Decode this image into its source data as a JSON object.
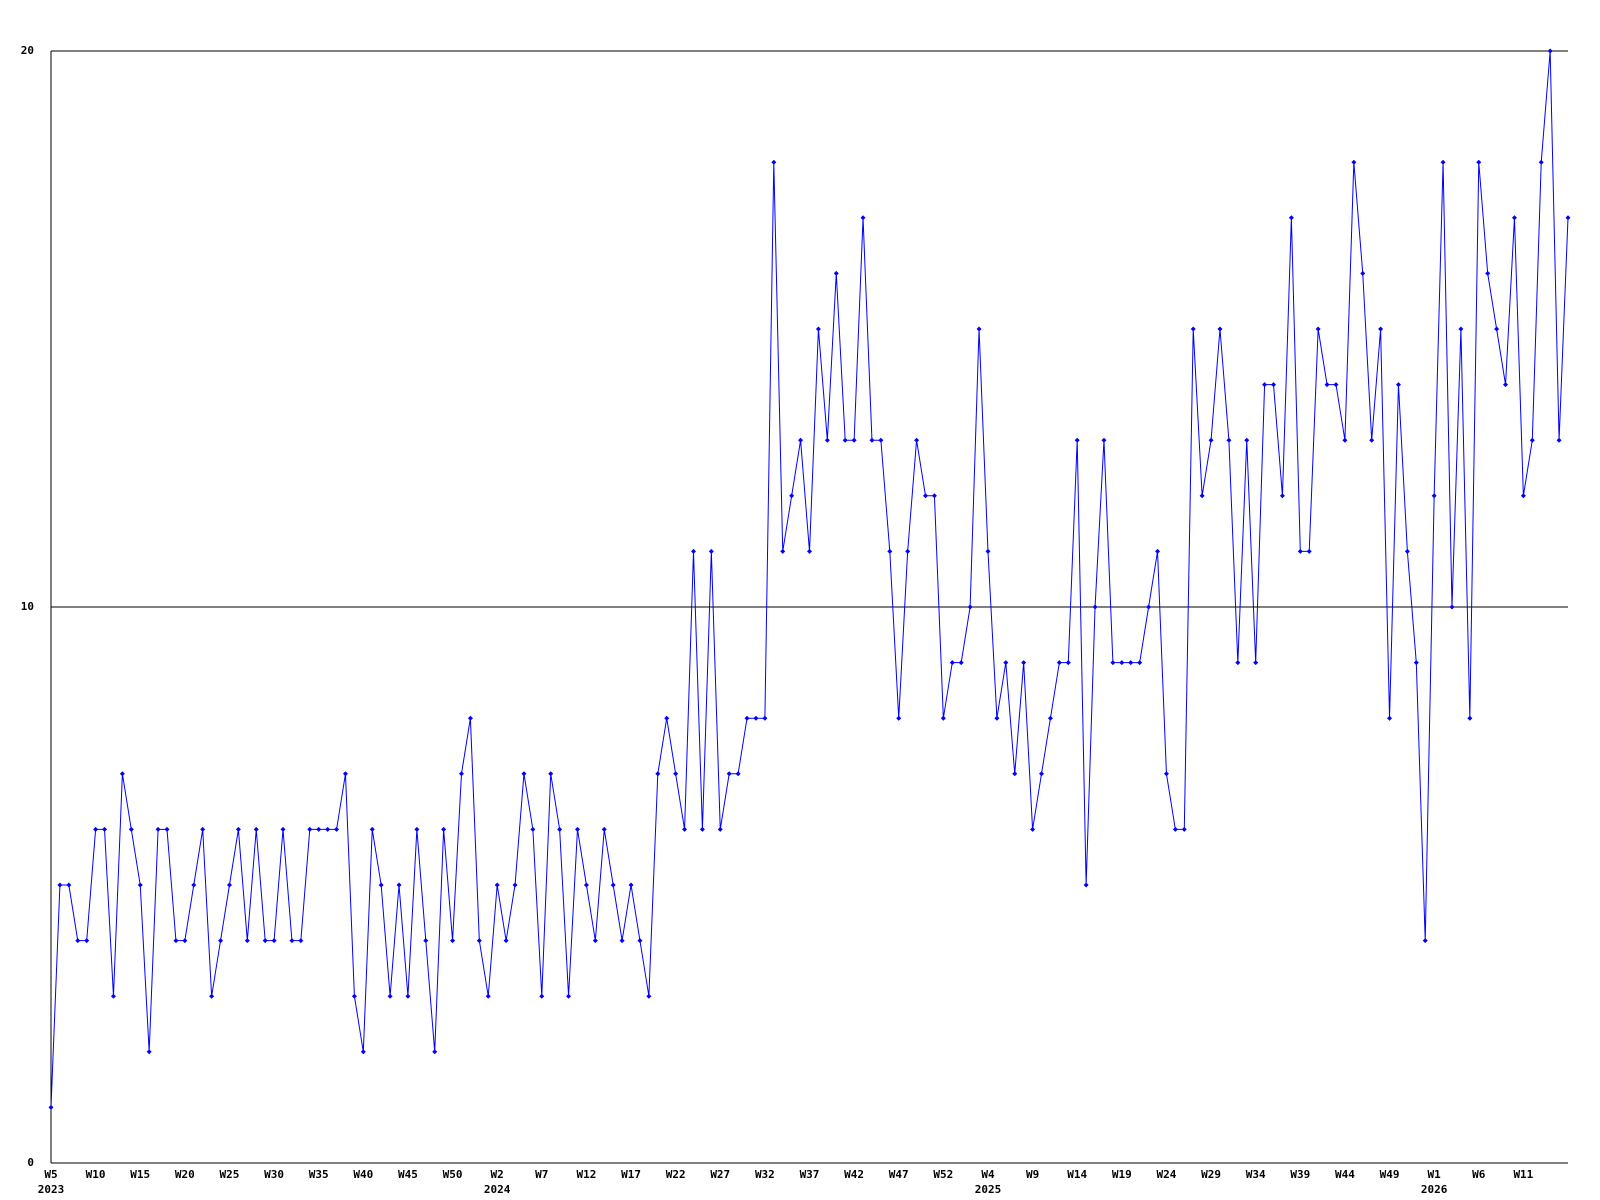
{
  "chart_data": {
    "type": "line",
    "color": "#0000ff",
    "grid": true,
    "ylim": [
      0,
      20
    ],
    "yticks": [
      0,
      10,
      20
    ],
    "categories": [
      "W5",
      null,
      null,
      null,
      null,
      "W10",
      null,
      null,
      null,
      null,
      "W15",
      null,
      null,
      null,
      null,
      "W20",
      null,
      null,
      null,
      null,
      "W25",
      null,
      null,
      null,
      null,
      "W30",
      null,
      null,
      null,
      null,
      "W35",
      null,
      null,
      null,
      null,
      "W40",
      null,
      null,
      null,
      null,
      "W45",
      null,
      null,
      null,
      null,
      "W50",
      null,
      null,
      null,
      null,
      "W2",
      null,
      null,
      null,
      null,
      "W7",
      null,
      null,
      null,
      null,
      "W12",
      null,
      null,
      null,
      null,
      "W17",
      null,
      null,
      null,
      null,
      "W22",
      null,
      null,
      null,
      null,
      "W27",
      null,
      null,
      null,
      null,
      "W32",
      null,
      null,
      null,
      null,
      "W37",
      null,
      null,
      null,
      null,
      "W42",
      null,
      null,
      null,
      null,
      "W47",
      null,
      null,
      null,
      null,
      "W52",
      null,
      null,
      null,
      null,
      "W4",
      null,
      null,
      null,
      null,
      "W9",
      null,
      null,
      null,
      null,
      "W14",
      null,
      null,
      null,
      null,
      "W19",
      null,
      null,
      null,
      null,
      "W24",
      null,
      null,
      null,
      null,
      "W29",
      null,
      null,
      null,
      null,
      "W34",
      null,
      null,
      null,
      null,
      "W39",
      null,
      null,
      null,
      null,
      "W44",
      null,
      null,
      null,
      null,
      "W49",
      null,
      null,
      null,
      null,
      "W1",
      null,
      null,
      null,
      null,
      "W6",
      null,
      null,
      null,
      null,
      "W11",
      null,
      null,
      null,
      null,
      null
    ],
    "category_years": [
      "2023",
      null,
      null,
      null,
      null,
      null,
      null,
      null,
      null,
      null,
      null,
      null,
      null,
      null,
      null,
      null,
      null,
      null,
      null,
      null,
      null,
      null,
      null,
      null,
      null,
      null,
      null,
      null,
      null,
      null,
      null,
      null,
      null,
      null,
      null,
      null,
      null,
      null,
      null,
      null,
      null,
      null,
      null,
      null,
      null,
      null,
      null,
      null,
      null,
      null,
      "2024",
      null,
      null,
      null,
      null,
      null,
      null,
      null,
      null,
      null,
      null,
      null,
      null,
      null,
      null,
      null,
      null,
      null,
      null,
      null,
      null,
      null,
      null,
      null,
      null,
      null,
      null,
      null,
      null,
      null,
      null,
      null,
      null,
      null,
      null,
      null,
      null,
      null,
      null,
      null,
      null,
      null,
      null,
      null,
      null,
      null,
      null,
      null,
      null,
      null,
      null,
      null,
      null,
      null,
      null,
      "2025",
      null,
      null,
      null,
      null,
      null,
      null,
      null,
      null,
      null,
      null,
      null,
      null,
      null,
      null,
      null,
      null,
      null,
      null,
      null,
      null,
      null,
      null,
      null,
      null,
      null,
      null,
      null,
      null,
      null,
      null,
      null,
      null,
      null,
      null,
      null,
      null,
      null,
      null,
      null,
      null,
      null,
      null,
      null,
      null,
      null,
      null,
      null,
      null,
      null,
      "2026",
      null,
      null,
      null,
      null,
      null,
      null,
      null,
      null,
      null,
      null,
      null,
      null,
      null,
      null,
      null
    ],
    "values": [
      1,
      5,
      5,
      4,
      4,
      6,
      6,
      3,
      7,
      6,
      5,
      2,
      6,
      6,
      4,
      4,
      5,
      6,
      3,
      4,
      5,
      6,
      4,
      6,
      4,
      4,
      6,
      4,
      4,
      6,
      6,
      6,
      6,
      7,
      3,
      2,
      6,
      5,
      3,
      5,
      3,
      6,
      4,
      2,
      6,
      4,
      7,
      8,
      4,
      3,
      5,
      4,
      5,
      7,
      6,
      3,
      7,
      6,
      3,
      6,
      5,
      4,
      6,
      5,
      4,
      5,
      4,
      3,
      7,
      8,
      7,
      6,
      11,
      6,
      11,
      6,
      7,
      7,
      8,
      8,
      8,
      18,
      11,
      12,
      13,
      11,
      15,
      13,
      16,
      13,
      13,
      17,
      13,
      13,
      11,
      8,
      11,
      13,
      12,
      12,
      8,
      9,
      9,
      10,
      15,
      11,
      8,
      9,
      7,
      9,
      6,
      7,
      8,
      9,
      9,
      13,
      5,
      10,
      13,
      9,
      9,
      9,
      9,
      10,
      11,
      7,
      6,
      6,
      15,
      12,
      13,
      15,
      13,
      9,
      13,
      9,
      14,
      14,
      12,
      17,
      11,
      11,
      15,
      14,
      14,
      13,
      18,
      16,
      13,
      15,
      8,
      14,
      11,
      9,
      4,
      12,
      18,
      10,
      15,
      8,
      18,
      16,
      15,
      14,
      17,
      12,
      13,
      18,
      20,
      13,
      17
    ]
  }
}
